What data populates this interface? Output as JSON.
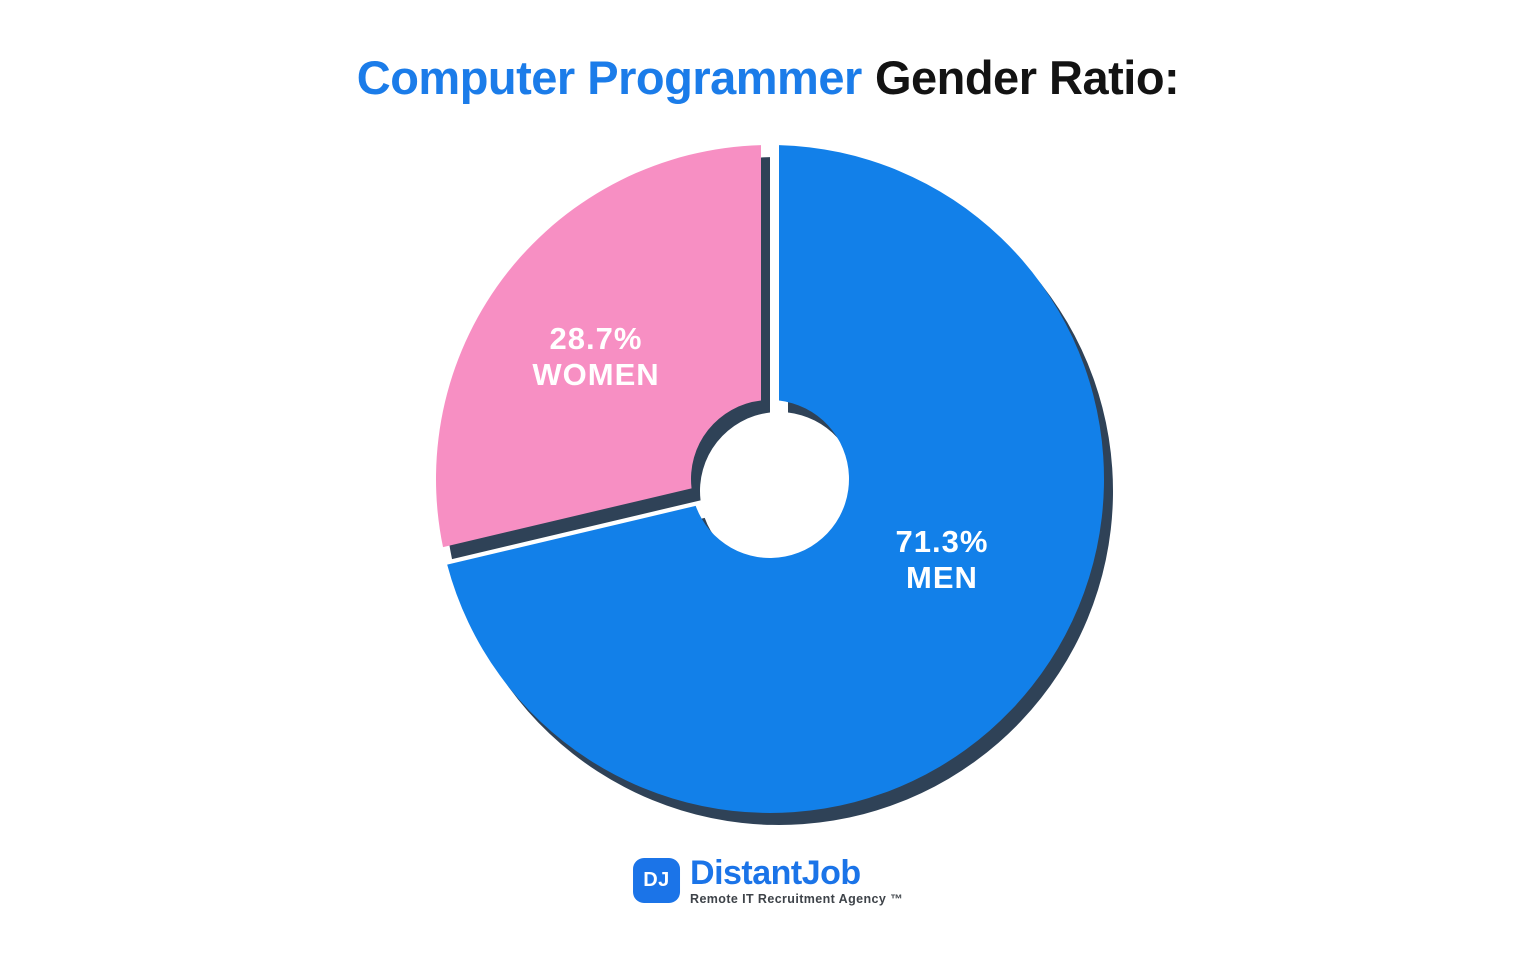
{
  "title": {
    "highlight": "Computer Programmer",
    "rest": "Gender Ratio:"
  },
  "chart_data": {
    "type": "pie",
    "variant": "donut",
    "title": "Computer Programmer Gender Ratio:",
    "unit": "%",
    "start_angle_deg": 0,
    "direction": "clockwise",
    "legend": "none",
    "labels_position": "inside",
    "background": "#FFFFFF",
    "shadow_color": "#2F4257",
    "slices": [
      {
        "label": "MEN",
        "value": 71.3,
        "pct_label": "71.3%",
        "color": "#1280E9",
        "text_color": "#FFFFFF"
      },
      {
        "label": "WOMEN",
        "value": 28.7,
        "pct_label": "28.7%",
        "color": "#F78FC3",
        "text_color": "#FFFFFF"
      }
    ]
  },
  "colors": {
    "title_highlight": "#1B7CE9",
    "title_rest": "#131313"
  },
  "branding": {
    "monogram": "DJ",
    "name": "DistantJob",
    "tagline": "Remote IT Recruitment Agency ™",
    "brand_color": "#1B74E8",
    "tagline_color": "#3E4349"
  }
}
